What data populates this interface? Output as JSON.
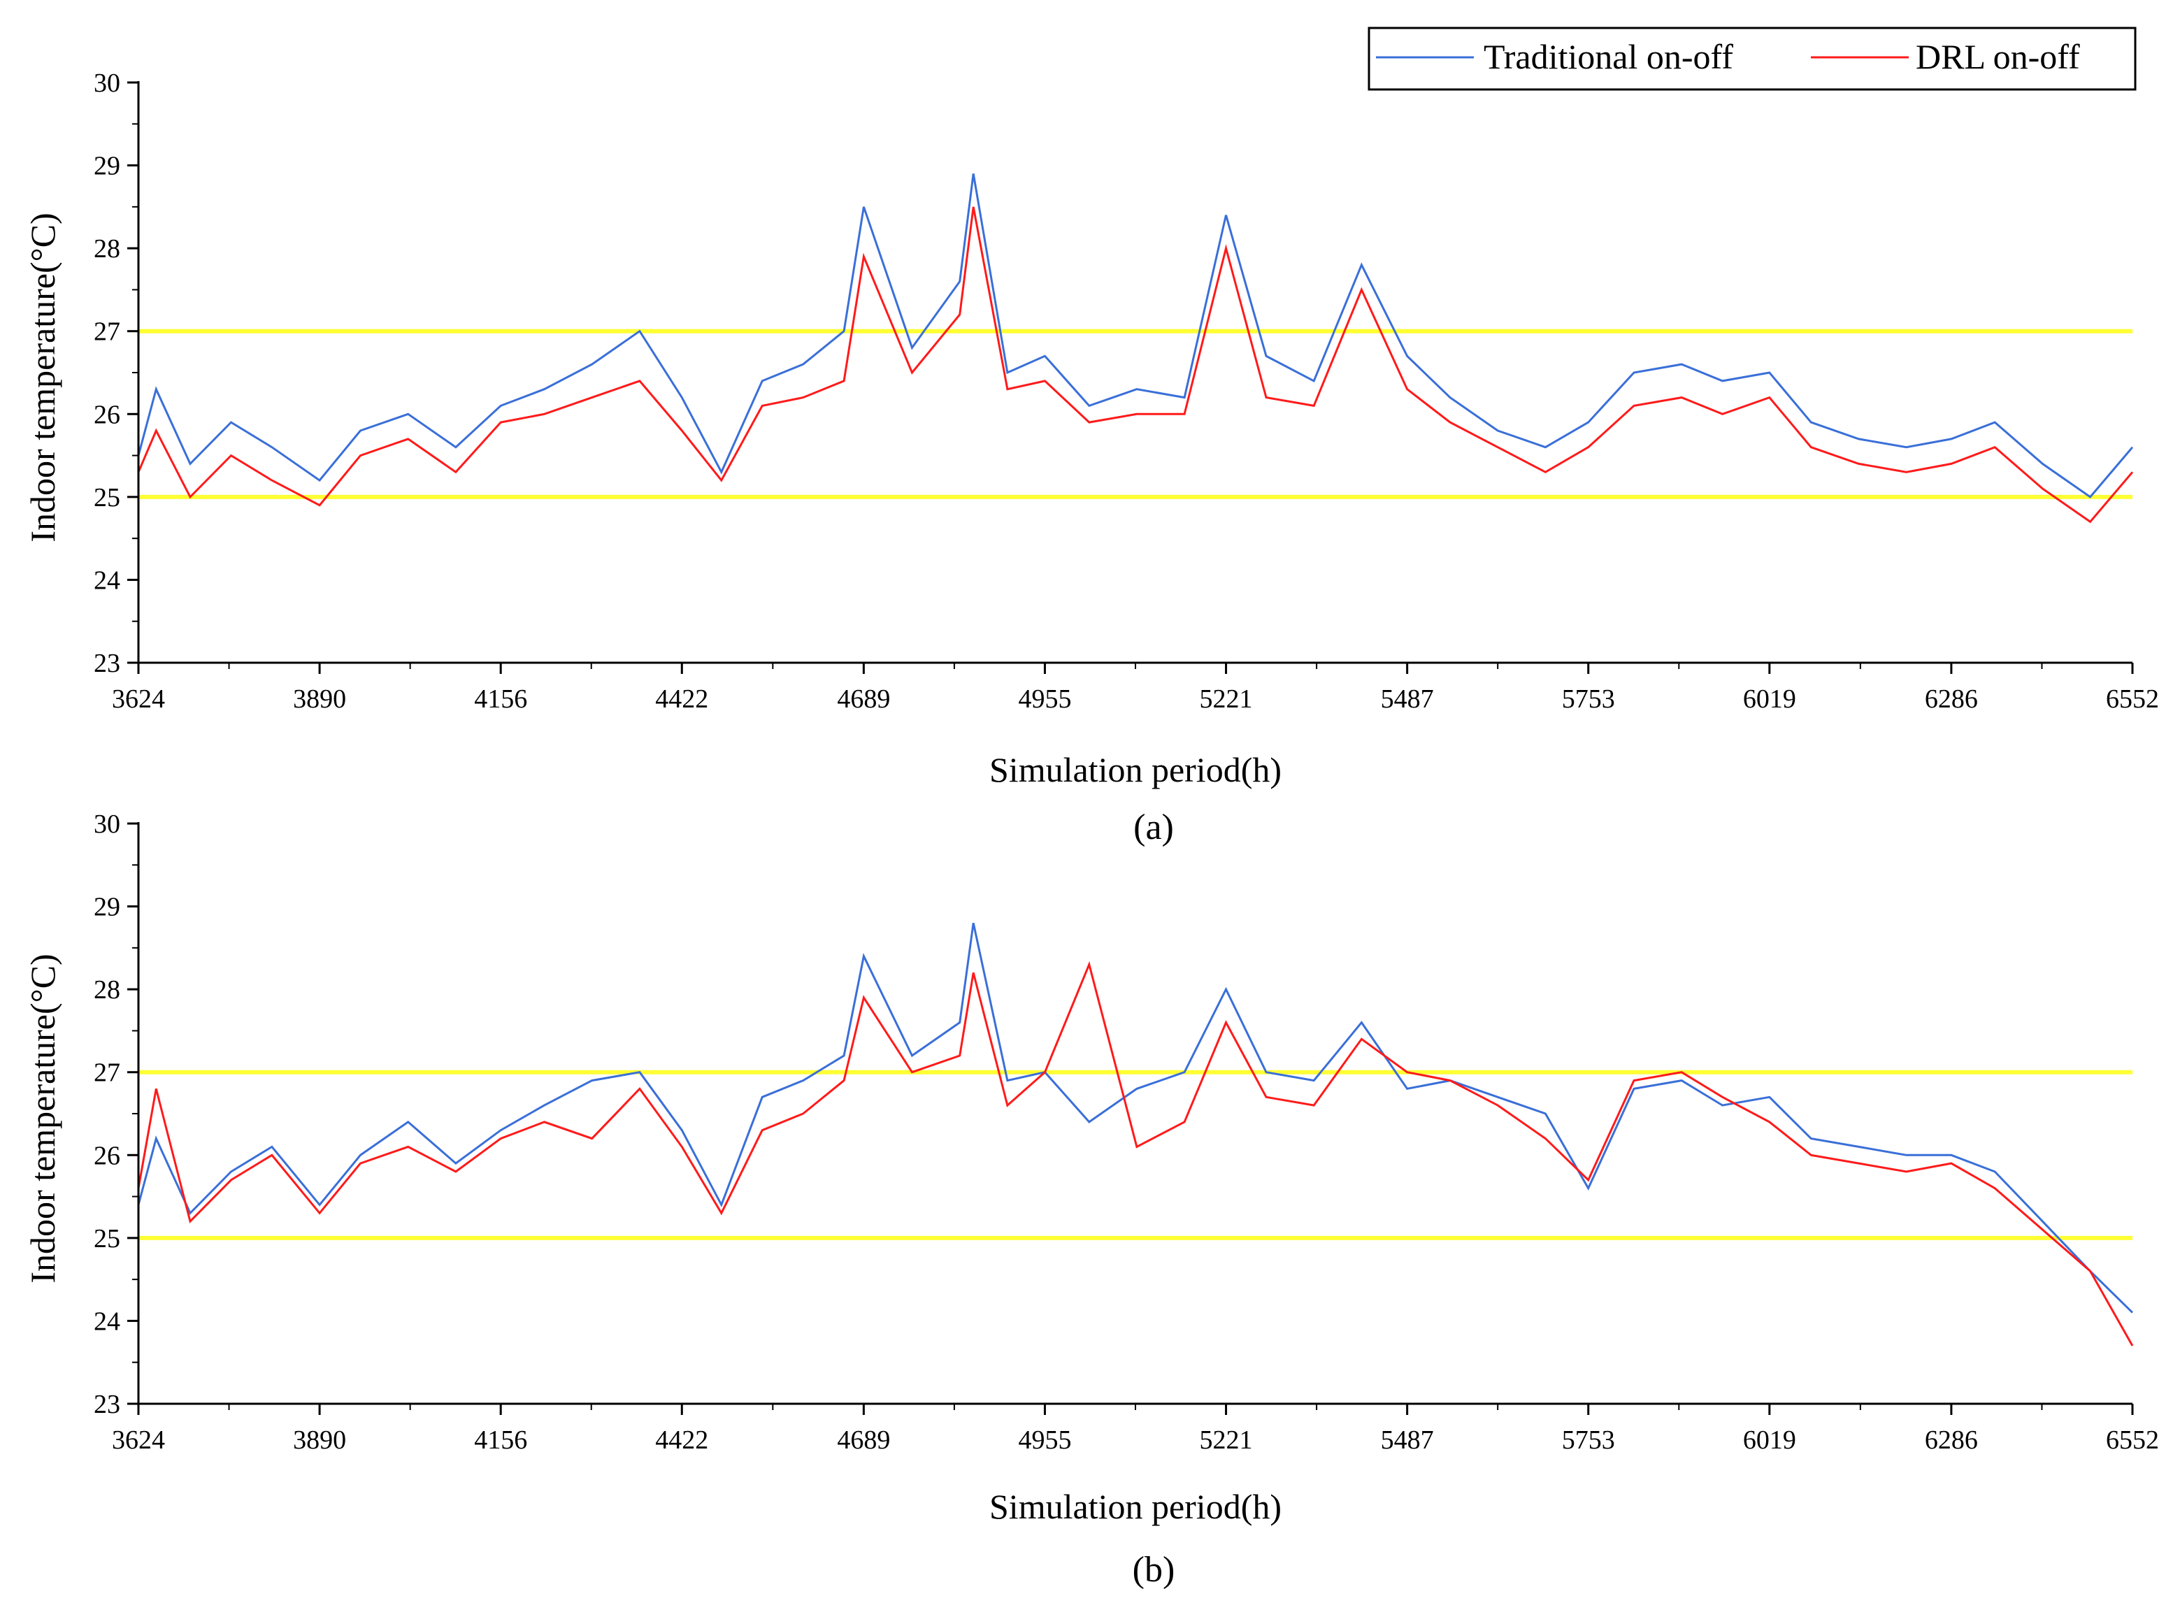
{
  "legend": {
    "traditional_label": "Traditional on-off",
    "drl_label": "DRL on-off"
  },
  "colors": {
    "traditional": "#3a6fd8",
    "drl": "#ff1a1a",
    "comfort_band": "#ffff33",
    "axis": "#000000"
  },
  "chart_data": [
    {
      "type": "line",
      "panel_label": "(a)",
      "xlabel": "Simulation period(h)",
      "ylabel": "Indoor temperature(°C)",
      "xlim": [
        3624,
        6552
      ],
      "ylim": [
        23,
        30
      ],
      "xticks": [
        3624,
        3890,
        4156,
        4422,
        4689,
        4955,
        5221,
        5487,
        5753,
        6019,
        6286,
        6552
      ],
      "yticks": [
        23,
        24,
        25,
        26,
        27,
        28,
        29,
        30
      ],
      "reference_lines": [
        25,
        27
      ],
      "series": [
        {
          "name": "Traditional on-off",
          "x": [
            3624,
            3650,
            3700,
            3760,
            3820,
            3890,
            3950,
            4020,
            4090,
            4156,
            4220,
            4290,
            4360,
            4422,
            4480,
            4540,
            4600,
            4660,
            4689,
            4760,
            4830,
            4850,
            4900,
            4955,
            5020,
            5090,
            5160,
            5221,
            5280,
            5350,
            5420,
            5487,
            5550,
            5620,
            5690,
            5753,
            5820,
            5890,
            5950,
            6019,
            6080,
            6150,
            6220,
            6286,
            6350,
            6420,
            6490,
            6552
          ],
          "values": [
            25.5,
            26.3,
            25.4,
            25.9,
            25.6,
            25.2,
            25.8,
            26.0,
            25.6,
            26.1,
            26.3,
            26.6,
            27.0,
            26.2,
            25.3,
            26.4,
            26.6,
            27.0,
            28.5,
            26.8,
            27.6,
            28.9,
            26.5,
            26.7,
            26.1,
            26.3,
            26.2,
            28.4,
            26.7,
            26.4,
            27.8,
            26.7,
            26.2,
            25.8,
            25.6,
            25.9,
            26.5,
            26.6,
            26.4,
            26.5,
            25.9,
            25.7,
            25.6,
            25.7,
            25.9,
            25.4,
            25.0,
            25.6
          ]
        },
        {
          "name": "DRL on-off",
          "x": [
            3624,
            3650,
            3700,
            3760,
            3820,
            3890,
            3950,
            4020,
            4090,
            4156,
            4220,
            4290,
            4360,
            4422,
            4480,
            4540,
            4600,
            4660,
            4689,
            4760,
            4830,
            4850,
            4900,
            4955,
            5020,
            5090,
            5160,
            5221,
            5280,
            5350,
            5420,
            5487,
            5550,
            5620,
            5690,
            5753,
            5820,
            5890,
            5950,
            6019,
            6080,
            6150,
            6220,
            6286,
            6350,
            6420,
            6490,
            6552
          ],
          "values": [
            25.3,
            25.8,
            25.0,
            25.5,
            25.2,
            24.9,
            25.5,
            25.7,
            25.3,
            25.9,
            26.0,
            26.2,
            26.4,
            25.8,
            25.2,
            26.1,
            26.2,
            26.4,
            27.9,
            26.5,
            27.2,
            28.5,
            26.3,
            26.4,
            25.9,
            26.0,
            26.0,
            28.0,
            26.2,
            26.1,
            27.5,
            26.3,
            25.9,
            25.6,
            25.3,
            25.6,
            26.1,
            26.2,
            26.0,
            26.2,
            25.6,
            25.4,
            25.3,
            25.4,
            25.6,
            25.1,
            24.7,
            25.3
          ]
        }
      ]
    },
    {
      "type": "line",
      "panel_label": "(b)",
      "xlabel": "Simulation period(h)",
      "ylabel": "Indoor temperature(°C)",
      "xlim": [
        3624,
        6552
      ],
      "ylim": [
        23,
        30
      ],
      "xticks": [
        3624,
        3890,
        4156,
        4422,
        4689,
        4955,
        5221,
        5487,
        5753,
        6019,
        6286,
        6552
      ],
      "yticks": [
        23,
        24,
        25,
        26,
        27,
        28,
        29,
        30
      ],
      "reference_lines": [
        25,
        27
      ],
      "series": [
        {
          "name": "Traditional on-off",
          "x": [
            3624,
            3650,
            3700,
            3760,
            3820,
            3890,
            3950,
            4020,
            4090,
            4156,
            4220,
            4290,
            4360,
            4422,
            4480,
            4540,
            4600,
            4660,
            4689,
            4760,
            4830,
            4850,
            4900,
            4955,
            5020,
            5090,
            5160,
            5221,
            5280,
            5350,
            5420,
            5487,
            5550,
            5620,
            5690,
            5753,
            5820,
            5890,
            5950,
            6019,
            6080,
            6150,
            6220,
            6286,
            6350,
            6420,
            6490,
            6552
          ],
          "values": [
            25.4,
            26.2,
            25.3,
            25.8,
            26.1,
            25.4,
            26.0,
            26.4,
            25.9,
            26.3,
            26.6,
            26.9,
            27.0,
            26.3,
            25.4,
            26.7,
            26.9,
            27.2,
            28.4,
            27.2,
            27.6,
            28.8,
            26.9,
            27.0,
            26.4,
            26.8,
            27.0,
            28.0,
            27.0,
            26.9,
            27.6,
            26.8,
            26.9,
            26.7,
            26.5,
            25.6,
            26.8,
            26.9,
            26.6,
            26.7,
            26.2,
            26.1,
            26.0,
            26.0,
            25.8,
            25.2,
            24.6,
            24.1
          ]
        },
        {
          "name": "DRL on-off",
          "x": [
            3624,
            3650,
            3700,
            3760,
            3820,
            3890,
            3950,
            4020,
            4090,
            4156,
            4220,
            4290,
            4360,
            4422,
            4480,
            4540,
            4600,
            4660,
            4689,
            4760,
            4830,
            4850,
            4900,
            4955,
            5020,
            5090,
            5160,
            5221,
            5280,
            5350,
            5420,
            5487,
            5550,
            5620,
            5690,
            5753,
            5820,
            5890,
            5950,
            6019,
            6080,
            6150,
            6220,
            6286,
            6350,
            6420,
            6490,
            6552
          ],
          "values": [
            25.6,
            26.8,
            25.2,
            25.7,
            26.0,
            25.3,
            25.9,
            26.1,
            25.8,
            26.2,
            26.4,
            26.2,
            26.8,
            26.1,
            25.3,
            26.3,
            26.5,
            26.9,
            27.9,
            27.0,
            27.2,
            28.2,
            26.6,
            27.0,
            28.3,
            26.1,
            26.4,
            27.6,
            26.7,
            26.6,
            27.4,
            27.0,
            26.9,
            26.6,
            26.2,
            25.7,
            26.9,
            27.0,
            26.7,
            26.4,
            26.0,
            25.9,
            25.8,
            25.9,
            25.6,
            25.1,
            24.6,
            23.7
          ]
        }
      ]
    }
  ]
}
